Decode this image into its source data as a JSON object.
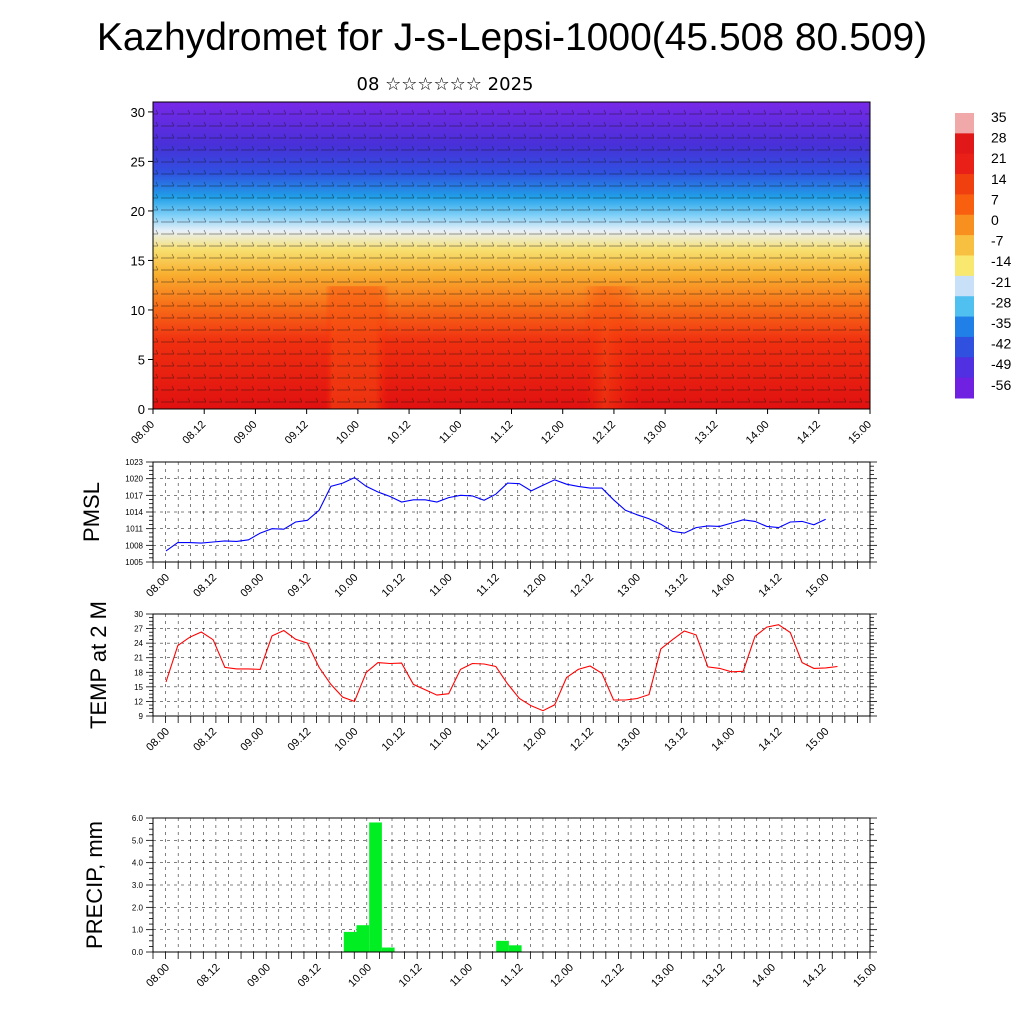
{
  "title": "Kazhydromet for J-s-Lepsi-1000(45.508 80.509)",
  "subtitle": "08 ☆☆☆☆☆☆ 2025",
  "chart_data": [
    {
      "type": "heatmap",
      "ylim": [
        0,
        31
      ],
      "yticks": [
        "0",
        "5",
        "10",
        "15",
        "20",
        "25",
        "30"
      ],
      "xticks": [
        "08.00",
        "08.12",
        "09.00",
        "09.12",
        "10.00",
        "10.12",
        "11.00",
        "11.12",
        "12.00",
        "12.12",
        "13.00",
        "13.12",
        "14.00",
        "14.12",
        "15.00"
      ],
      "colorbar": {
        "labels": [
          "35",
          "28",
          "21",
          "14",
          "7",
          "0",
          "-7",
          "-14",
          "-21",
          "-28",
          "-35",
          "-42",
          "-49",
          "-56"
        ],
        "colors": [
          "#f0a8a8",
          "#e01818",
          "#e82018",
          "#f04010",
          "#f86010",
          "#f89020",
          "#f8c040",
          "#f8e870",
          "#c8e0f8",
          "#50c0f0",
          "#2080e8",
          "#3050e0",
          "#5030e0",
          "#7020e0"
        ]
      },
      "grid": false
    },
    {
      "type": "line",
      "ylabel": "PMSL",
      "ylim": [
        1005,
        1023
      ],
      "yticks": [
        "1005",
        "1008",
        "1011",
        "1014",
        "1017",
        "1020",
        "1023"
      ],
      "xticks": [
        "08.00",
        "08.12",
        "09.00",
        "09.12",
        "10.00",
        "10.12",
        "11.00",
        "11.12",
        "12.00",
        "12.12",
        "13.00",
        "13.12",
        "14.00",
        "14.12",
        "15.00"
      ],
      "color": "#0000ff",
      "values": [
        1007.0,
        1008.5,
        1008.5,
        1008.4,
        1008.6,
        1008.8,
        1008.7,
        1009.0,
        1010.2,
        1011.0,
        1010.9,
        1012.2,
        1012.5,
        1014.3,
        1018.6,
        1019.2,
        1020.2,
        1018.6,
        1017.6,
        1016.8,
        1015.8,
        1016.2,
        1016.2,
        1015.8,
        1016.6,
        1017.0,
        1016.9,
        1016.1,
        1017.2,
        1019.2,
        1019.1,
        1017.8,
        1018.8,
        1019.8,
        1019.0,
        1018.6,
        1018.3,
        1018.3,
        1016.2,
        1014.3,
        1013.5,
        1012.8,
        1011.8,
        1010.5,
        1010.2,
        1011.2,
        1011.5,
        1011.4,
        1012.0,
        1012.6,
        1012.3,
        1011.4,
        1011.2,
        1012.2,
        1012.3,
        1011.7,
        1012.7
      ],
      "grid": true
    },
    {
      "type": "line",
      "ylabel": "TEMP at 2 M",
      "ylim": [
        9,
        30
      ],
      "yticks": [
        "9",
        "12",
        "15",
        "18",
        "21",
        "24",
        "27",
        "30"
      ],
      "xticks": [
        "08.00",
        "08.12",
        "09.00",
        "09.12",
        "10.00",
        "10.12",
        "11.00",
        "11.12",
        "12.00",
        "12.12",
        "13.00",
        "13.12",
        "14.00",
        "14.12",
        "15.00"
      ],
      "color": "#ff0000",
      "values": [
        16.0,
        23.5,
        25.2,
        26.3,
        24.7,
        19.0,
        18.7,
        18.7,
        18.6,
        25.5,
        26.6,
        24.8,
        24.0,
        19.0,
        15.5,
        12.9,
        12.0,
        18.0,
        20.0,
        19.8,
        19.9,
        15.5,
        14.4,
        13.3,
        13.6,
        18.6,
        19.8,
        19.7,
        19.2,
        15.6,
        12.6,
        11.1,
        10.1,
        11.3,
        16.9,
        18.6,
        19.3,
        17.8,
        12.3,
        12.3,
        12.6,
        13.4,
        22.8,
        24.7,
        26.5,
        25.7,
        19.1,
        18.8,
        18.1,
        18.2,
        25.4,
        27.3,
        27.8,
        26.2,
        20.0,
        18.8,
        18.9,
        19.2
      ],
      "grid": true
    },
    {
      "type": "bar",
      "ylabel": "PRECIP, mm",
      "ylim": [
        0,
        6
      ],
      "yticks": [
        "0.0",
        "1.0",
        "2.0",
        "3.0",
        "4.0",
        "5.0",
        "6.0"
      ],
      "xticks": [
        "08.00",
        "08.12",
        "09.00",
        "09.12",
        "10.00",
        "10.12",
        "11.00",
        "11.12",
        "12.00",
        "12.12",
        "13.00",
        "13.12",
        "14.00",
        "14.12",
        "15.00"
      ],
      "color": "#00ee22",
      "bars": [
        {
          "x": 14,
          "value": 0.9
        },
        {
          "x": 15,
          "value": 1.2
        },
        {
          "x": 16,
          "value": 5.8
        },
        {
          "x": 17,
          "value": 0.2
        },
        {
          "x": 26,
          "value": 0.5
        },
        {
          "x": 27,
          "value": 0.3
        }
      ],
      "grid": true
    }
  ]
}
